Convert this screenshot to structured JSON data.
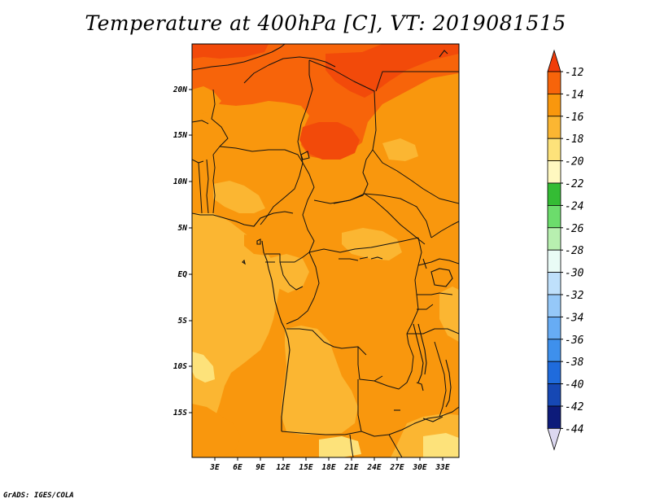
{
  "title": "Temperature at 400hPa [C], VT: 2019081515",
  "credit": "GrADS: IGES/COLA",
  "map": {
    "lat_labels": [
      "20N",
      "15N",
      "10N",
      "5N",
      "EQ",
      "5S",
      "10S",
      "15S"
    ],
    "lon_labels": [
      "3E",
      "6E",
      "9E",
      "12E",
      "15E",
      "18E",
      "21E",
      "24E",
      "27E",
      "30E",
      "33E"
    ]
  },
  "colorbar": {
    "labels": [
      "-12",
      "-14",
      "-16",
      "-18",
      "-20",
      "-22",
      "-24",
      "-26",
      "-28",
      "-30",
      "-32",
      "-34",
      "-36",
      "-38",
      "-40",
      "-42",
      "-44"
    ],
    "colors": [
      "#f03c0a",
      "#f7640a",
      "#f9970d",
      "#fbb632",
      "#fde27a",
      "#fff8c0",
      "#34bc34",
      "#6cdc6c",
      "#b8f0b0",
      "#e9fbf6",
      "#bfe0fb",
      "#95c8f8",
      "#67acf4",
      "#3e90ec",
      "#1f6bdc",
      "#1648b4",
      "#0d1b7a",
      "#dcd8f0"
    ]
  },
  "colors": {
    "t_13": "#f7640a",
    "t_15": "#f9970d",
    "t_17": "#fbb632",
    "t_19": "#fde27a"
  }
}
